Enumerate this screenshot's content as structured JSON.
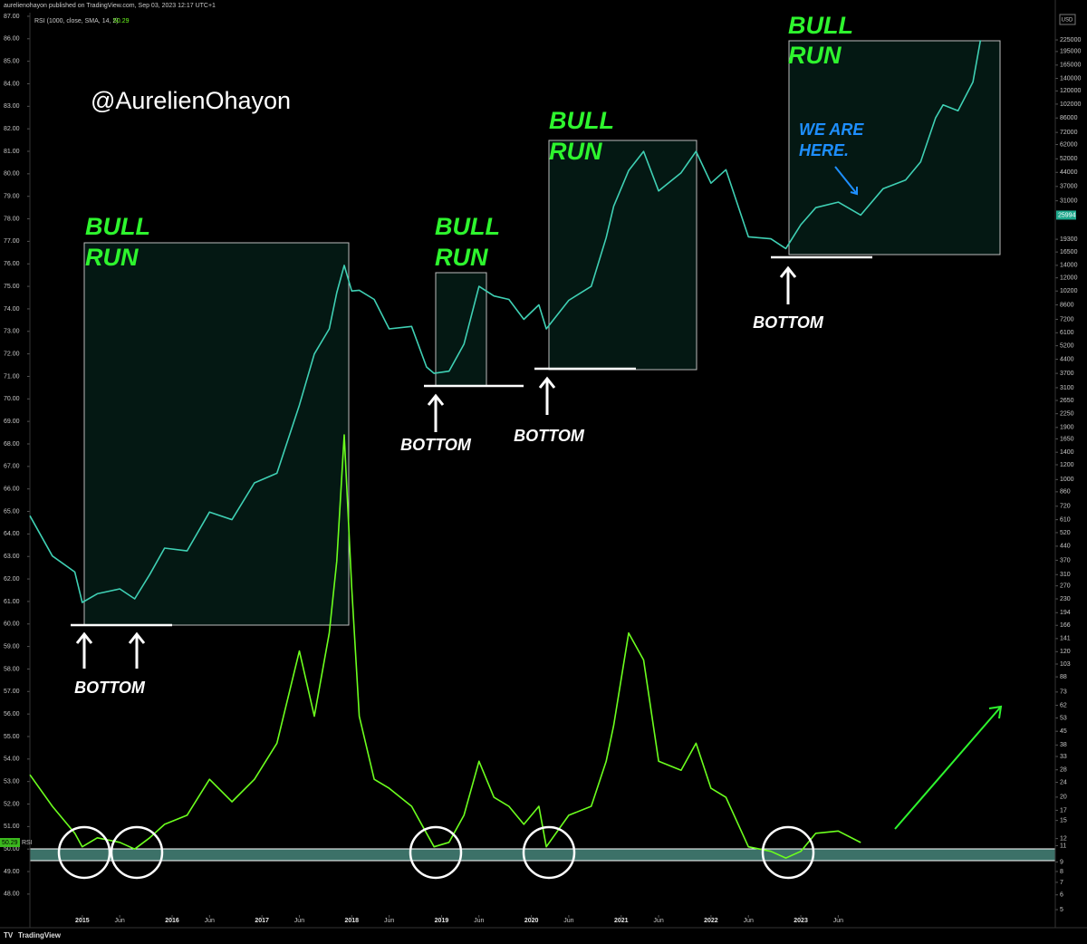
{
  "chart_data": {
    "type": "line",
    "header": "aurelienohayon published on TradingView.com, Sep 03, 2023 12:17 UTC+1",
    "currency": "USD",
    "rsi_tag": "RSI",
    "brand": "TradingView",
    "watermark": "@AurelienOhayon",
    "bull_runs": [
      [
        "BULL",
        "RUN"
      ],
      [
        "BULL",
        "RUN"
      ],
      [
        "BULL",
        "RUN"
      ],
      [
        "BULL",
        "RUN"
      ]
    ],
    "bottoms": [
      "BOTTOM",
      "BOTTOM",
      "BOTTOM",
      "BOTTOM"
    ],
    "we_are_here": [
      "WE ARE",
      "HERE."
    ],
    "x": [
      "2014-06",
      "2014-09",
      "2014-12",
      "2015-01",
      "2015-03",
      "2015-06",
      "2015-08",
      "2015-10",
      "2015-12",
      "2016-03",
      "2016-06",
      "2016-09",
      "2016-12",
      "2017-03",
      "2017-06",
      "2017-08",
      "2017-10",
      "2017-11",
      "2017-12",
      "2018-01",
      "2018-02",
      "2018-04",
      "2018-06",
      "2018-09",
      "2018-11",
      "2018-12",
      "2019-02",
      "2019-04",
      "2019-06",
      "2019-08",
      "2019-10",
      "2019-12",
      "2020-02",
      "2020-03",
      "2020-06",
      "2020-09",
      "2020-11",
      "2020-12",
      "2021-02",
      "2021-04",
      "2021-06",
      "2021-09",
      "2021-11",
      "2022-01",
      "2022-03",
      "2022-06",
      "2022-09",
      "2022-11",
      "2023-01",
      "2023-03",
      "2023-06",
      "2023-09",
      "2023-12",
      "2024-03",
      "2024-05",
      "2024-07",
      "2024-08",
      "2024-10",
      "2024-12",
      "2025-01"
    ],
    "xlim": [
      "2014-06",
      "2025-11"
    ],
    "xticks": [
      {
        "value": "2015-01",
        "label": "2015"
      },
      {
        "value": "2015-06",
        "label": "Jun"
      },
      {
        "value": "2016-01",
        "label": "2016"
      },
      {
        "value": "2016-06",
        "label": "Jun"
      },
      {
        "value": "2017-01",
        "label": "2017"
      },
      {
        "value": "2017-06",
        "label": "Jun"
      },
      {
        "value": "2018-01",
        "label": "2018"
      },
      {
        "value": "2018-06",
        "label": "Jun"
      },
      {
        "value": "2019-01",
        "label": "2019"
      },
      {
        "value": "2019-06",
        "label": "Jun"
      },
      {
        "value": "2020-01",
        "label": "2020"
      },
      {
        "value": "2020-06",
        "label": "Jun"
      },
      {
        "value": "2021-01",
        "label": "2021"
      },
      {
        "value": "2021-06",
        "label": "Jun"
      },
      {
        "value": "2022-01",
        "label": "2022"
      },
      {
        "value": "2022-06",
        "label": "Jun"
      },
      {
        "value": "2023-01",
        "label": "2023"
      },
      {
        "value": "2023-06",
        "label": "Jun"
      }
    ],
    "series": [
      {
        "name": "RSI (1000, close, SMA, 14, 2)",
        "color": "#6cff1e",
        "values": [
          53.3,
          51.9,
          50.7,
          50.1,
          50.5,
          50.3,
          50.0,
          50.5,
          51.1,
          51.5,
          53.1,
          52.1,
          53.1,
          54.7,
          58.8,
          55.9,
          59.6,
          62.8,
          68.4,
          61.6,
          55.9,
          53.1,
          52.7,
          51.9,
          50.7,
          50.1,
          50.3,
          51.5,
          53.9,
          52.3,
          51.9,
          51.1,
          51.9,
          50.1,
          51.5,
          51.9,
          53.9,
          55.5,
          59.6,
          58.4,
          53.9,
          53.5,
          54.7,
          52.7,
          52.3,
          50.1,
          49.9,
          49.6,
          49.9,
          50.7,
          50.8,
          50.29,
          null,
          null,
          null,
          null,
          null,
          null,
          null,
          null
        ]
      },
      {
        "color": "#3fd0b4",
        "axis": "y2",
        "values": [
          640,
          390,
          320,
          220,
          245,
          260,
          230,
          310,
          430,
          415,
          670,
          610,
          960,
          1080,
          2500,
          4700,
          6400,
          10000,
          14000,
          10200,
          10300,
          9200,
          6400,
          6600,
          4000,
          3700,
          3800,
          5300,
          10800,
          9600,
          9200,
          7200,
          8600,
          6400,
          9100,
          10800,
          19700,
          29000,
          45000,
          57000,
          35000,
          43800,
          57000,
          38500,
          45500,
          19900,
          19400,
          17200,
          23100,
          28500,
          30500,
          25994,
          36000,
          40000,
          50000,
          86000,
          101000,
          94000,
          134000,
          224000
        ]
      }
    ],
    "ylim": [
      47.07,
      87.32
    ],
    "yticks": [
      {
        "value": 87,
        "label": "87.00"
      },
      {
        "value": 86,
        "label": "86.00"
      },
      {
        "value": 85,
        "label": "85.00"
      },
      {
        "value": 84,
        "label": "84.00"
      },
      {
        "value": 83,
        "label": "83.00"
      },
      {
        "value": 82,
        "label": "82.00"
      },
      {
        "value": 81,
        "label": "81.00"
      },
      {
        "value": 80,
        "label": "80.00"
      },
      {
        "value": 79,
        "label": "79.00"
      },
      {
        "value": 78,
        "label": "78.00"
      },
      {
        "value": 77,
        "label": "77.00"
      },
      {
        "value": 76,
        "label": "76.00"
      },
      {
        "value": 75,
        "label": "75.00"
      },
      {
        "value": 74,
        "label": "74.00"
      },
      {
        "value": 73,
        "label": "73.00"
      },
      {
        "value": 72,
        "label": "72.00"
      },
      {
        "value": 71,
        "label": "71.00"
      },
      {
        "value": 70,
        "label": "70.00"
      },
      {
        "value": 69,
        "label": "69.00"
      },
      {
        "value": 68,
        "label": "68.00"
      },
      {
        "value": 67,
        "label": "67.00"
      },
      {
        "value": 66,
        "label": "66.00"
      },
      {
        "value": 65,
        "label": "65.00"
      },
      {
        "value": 64,
        "label": "64.00"
      },
      {
        "value": 63,
        "label": "63.00"
      },
      {
        "value": 62,
        "label": "62.00"
      },
      {
        "value": 61,
        "label": "61.00"
      },
      {
        "value": 60,
        "label": "60.00"
      },
      {
        "value": 59,
        "label": "59.00"
      },
      {
        "value": 58,
        "label": "58.00"
      },
      {
        "value": 57,
        "label": "57.00"
      },
      {
        "value": 56,
        "label": "56.00"
      },
      {
        "value": 55,
        "label": "55.00"
      },
      {
        "value": 54,
        "label": "54.00"
      },
      {
        "value": 53,
        "label": "53.00"
      },
      {
        "value": 52,
        "label": "52.00"
      },
      {
        "value": 51,
        "label": "51.00"
      },
      {
        "value": 50,
        "label": "50.00"
      },
      {
        "value": 49,
        "label": "49.00"
      },
      {
        "value": 48,
        "label": "48.00"
      }
    ],
    "y2lim": [
      4.68,
      329000
    ],
    "y2ticks": [
      225000,
      195000,
      165000,
      140000,
      120000,
      102000,
      86000,
      72000,
      62000,
      52000,
      44000,
      37000,
      31000,
      19300,
      16500,
      14000,
      12000,
      10200,
      8600,
      7200,
      6100,
      5200,
      4400,
      3700,
      3100,
      2650,
      2250,
      1900,
      1650,
      1400,
      1200,
      1000,
      860,
      720,
      610,
      520,
      440,
      370,
      310,
      270,
      230,
      194,
      166,
      141,
      120,
      103,
      88,
      73,
      62,
      53,
      45,
      38,
      33,
      28,
      24,
      20,
      17,
      15,
      12,
      11,
      9,
      8,
      7,
      6,
      5
    ],
    "y2_log": true,
    "grid": false
  }
}
